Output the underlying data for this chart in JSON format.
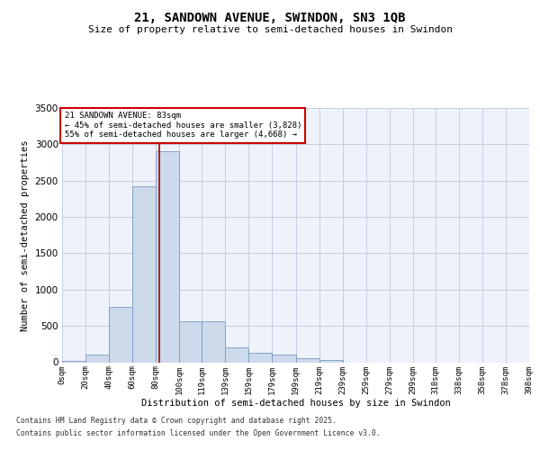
{
  "title_line1": "21, SANDOWN AVENUE, SWINDON, SN3 1QB",
  "title_line2": "Size of property relative to semi-detached houses in Swindon",
  "xlabel": "Distribution of semi-detached houses by size in Swindon",
  "ylabel": "Number of semi-detached properties",
  "annotation_title": "21 SANDOWN AVENUE: 83sqm",
  "annotation_line2": "← 45% of semi-detached houses are smaller (3,828)",
  "annotation_line3": "55% of semi-detached houses are larger (4,668) →",
  "footnote1": "Contains HM Land Registry data © Crown copyright and database right 2025.",
  "footnote2": "Contains public sector information licensed under the Open Government Licence v3.0.",
  "property_size": 83,
  "bar_color": "#ccdaec",
  "bar_edge_color": "#7a9abf",
  "vline_color": "#aa0000",
  "annotation_box_color": "#cc0000",
  "background_color": "#eef2fa",
  "grid_color": "#c0c8dc",
  "categories": [
    "0sqm",
    "20sqm",
    "40sqm",
    "60sqm",
    "80sqm",
    "100sqm",
    "119sqm",
    "139sqm",
    "159sqm",
    "179sqm",
    "199sqm",
    "219sqm",
    "239sqm",
    "259sqm",
    "279sqm",
    "299sqm",
    "318sqm",
    "338sqm",
    "358sqm",
    "378sqm",
    "398sqm"
  ],
  "bin_edges": [
    0,
    20,
    40,
    60,
    80,
    100,
    119,
    139,
    159,
    179,
    199,
    219,
    239,
    259,
    279,
    299,
    318,
    338,
    358,
    378,
    398
  ],
  "values": [
    20,
    110,
    760,
    2420,
    2900,
    560,
    560,
    200,
    130,
    110,
    55,
    25,
    0,
    0,
    0,
    0,
    0,
    0,
    0,
    0
  ],
  "ylim": [
    0,
    3500
  ],
  "yticks": [
    0,
    500,
    1000,
    1500,
    2000,
    2500,
    3000,
    3500
  ]
}
